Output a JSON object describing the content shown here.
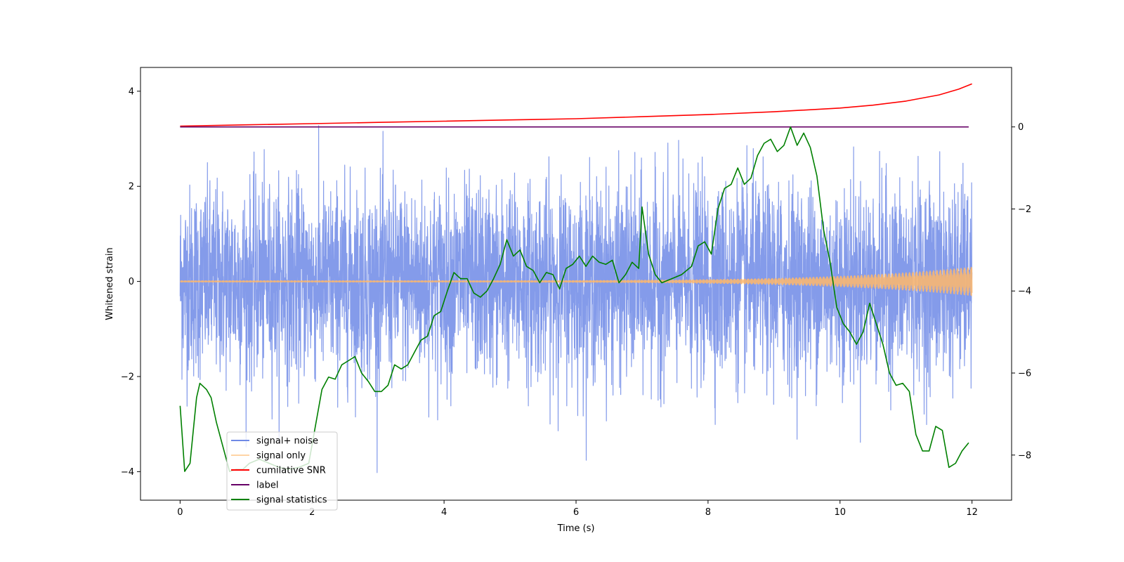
{
  "chart_data": {
    "type": "line",
    "xlabel": "Time (s)",
    "ylabel": "Whitened strain",
    "xlim": [
      -0.6,
      12.6
    ],
    "ylim": [
      -4.6,
      4.5
    ],
    "y2lim": [
      -9.1,
      1.45
    ],
    "x_ticks": [
      0,
      2,
      4,
      6,
      8,
      10,
      12
    ],
    "y_ticks": [
      -4,
      -2,
      0,
      2,
      4
    ],
    "y2_ticks": [
      -8,
      -6,
      -4,
      -2,
      0
    ],
    "legend_placement": "lower-left",
    "series": [
      {
        "name": "signal+ noise",
        "axis": "left",
        "color": "#6f8ae6",
        "style": "noise, approx. std 1, extremes about ±4, x from 0 to 12",
        "x_range": [
          0,
          12
        ],
        "approx_std": 1.0,
        "approx_max_abs": 4.1
      },
      {
        "name": "signal only",
        "axis": "left",
        "color": "#ffb96b",
        "style": "chirp oscillation, amplitude grows from ~0 to ~0.3 at x=12",
        "x_range": [
          0,
          12
        ],
        "amplitude_start": 0.01,
        "amplitude_end": 0.3
      },
      {
        "name": "cumilative SNR",
        "axis": "right",
        "color": "#ff0000",
        "points": [
          [
            0,
            0.02
          ],
          [
            1,
            0.05
          ],
          [
            2,
            0.08
          ],
          [
            3,
            0.11
          ],
          [
            4,
            0.14
          ],
          [
            5,
            0.17
          ],
          [
            6,
            0.2
          ],
          [
            7,
            0.25
          ],
          [
            8,
            0.3
          ],
          [
            9,
            0.37
          ],
          [
            10,
            0.46
          ],
          [
            10.5,
            0.53
          ],
          [
            11,
            0.63
          ],
          [
            11.5,
            0.78
          ],
          [
            11.8,
            0.92
          ],
          [
            12,
            1.05
          ]
        ]
      },
      {
        "name": "label",
        "axis": "right",
        "color": "#660066",
        "points": [
          [
            0,
            0
          ],
          [
            11.95,
            0
          ]
        ]
      },
      {
        "name": "signal statistics",
        "axis": "right",
        "color": "#008000",
        "points": [
          [
            0,
            -6.8
          ],
          [
            0.07,
            -8.4
          ],
          [
            0.15,
            -8.2
          ],
          [
            0.25,
            -6.6
          ],
          [
            0.3,
            -6.25
          ],
          [
            0.4,
            -6.4
          ],
          [
            0.47,
            -6.6
          ],
          [
            0.55,
            -7.2
          ],
          [
            0.65,
            -7.8
          ],
          [
            0.75,
            -8.4
          ],
          [
            0.85,
            -8.35
          ],
          [
            0.95,
            -8.35
          ],
          [
            1.05,
            -8.2
          ],
          [
            1.2,
            -8.1
          ],
          [
            1.35,
            -8.2
          ],
          [
            1.5,
            -8.3
          ],
          [
            1.65,
            -8.35
          ],
          [
            1.8,
            -8.3
          ],
          [
            1.95,
            -8.2
          ],
          [
            2.05,
            -7.3
          ],
          [
            2.15,
            -6.4
          ],
          [
            2.25,
            -6.1
          ],
          [
            2.35,
            -6.15
          ],
          [
            2.45,
            -5.8
          ],
          [
            2.55,
            -5.7
          ],
          [
            2.65,
            -5.6
          ],
          [
            2.75,
            -6.0
          ],
          [
            2.85,
            -6.2
          ],
          [
            2.95,
            -6.45
          ],
          [
            3.05,
            -6.45
          ],
          [
            3.15,
            -6.3
          ],
          [
            3.25,
            -5.8
          ],
          [
            3.35,
            -5.9
          ],
          [
            3.45,
            -5.8
          ],
          [
            3.55,
            -5.5
          ],
          [
            3.65,
            -5.2
          ],
          [
            3.75,
            -5.1
          ],
          [
            3.85,
            -4.6
          ],
          [
            3.95,
            -4.5
          ],
          [
            4.05,
            -4.0
          ],
          [
            4.15,
            -3.55
          ],
          [
            4.25,
            -3.7
          ],
          [
            4.35,
            -3.7
          ],
          [
            4.45,
            -4.05
          ],
          [
            4.55,
            -4.15
          ],
          [
            4.65,
            -4.0
          ],
          [
            4.75,
            -3.7
          ],
          [
            4.85,
            -3.35
          ],
          [
            4.95,
            -2.75
          ],
          [
            5.05,
            -3.15
          ],
          [
            5.15,
            -3.0
          ],
          [
            5.25,
            -3.4
          ],
          [
            5.35,
            -3.5
          ],
          [
            5.45,
            -3.8
          ],
          [
            5.55,
            -3.55
          ],
          [
            5.65,
            -3.6
          ],
          [
            5.75,
            -3.95
          ],
          [
            5.85,
            -3.45
          ],
          [
            5.95,
            -3.35
          ],
          [
            6.05,
            -3.15
          ],
          [
            6.15,
            -3.4
          ],
          [
            6.25,
            -3.15
          ],
          [
            6.35,
            -3.3
          ],
          [
            6.45,
            -3.35
          ],
          [
            6.55,
            -3.25
          ],
          [
            6.65,
            -3.8
          ],
          [
            6.75,
            -3.6
          ],
          [
            6.85,
            -3.3
          ],
          [
            6.95,
            -3.45
          ],
          [
            7.0,
            -1.95
          ],
          [
            7.1,
            -3.1
          ],
          [
            7.2,
            -3.6
          ],
          [
            7.3,
            -3.8
          ],
          [
            7.45,
            -3.7
          ],
          [
            7.6,
            -3.6
          ],
          [
            7.75,
            -3.4
          ],
          [
            7.85,
            -2.9
          ],
          [
            7.95,
            -2.8
          ],
          [
            8.05,
            -3.1
          ],
          [
            8.15,
            -2.0
          ],
          [
            8.25,
            -1.5
          ],
          [
            8.35,
            -1.4
          ],
          [
            8.45,
            -1.0
          ],
          [
            8.55,
            -1.4
          ],
          [
            8.65,
            -1.25
          ],
          [
            8.75,
            -0.7
          ],
          [
            8.85,
            -0.4
          ],
          [
            8.95,
            -0.3
          ],
          [
            9.05,
            -0.6
          ],
          [
            9.15,
            -0.45
          ],
          [
            9.25,
            0.0
          ],
          [
            9.35,
            -0.45
          ],
          [
            9.45,
            -0.15
          ],
          [
            9.55,
            -0.5
          ],
          [
            9.65,
            -1.2
          ],
          [
            9.75,
            -2.5
          ],
          [
            9.85,
            -3.3
          ],
          [
            9.95,
            -4.4
          ],
          [
            10.05,
            -4.8
          ],
          [
            10.15,
            -5.0
          ],
          [
            10.25,
            -5.3
          ],
          [
            10.35,
            -5.0
          ],
          [
            10.45,
            -4.3
          ],
          [
            10.55,
            -4.8
          ],
          [
            10.65,
            -5.3
          ],
          [
            10.75,
            -6.0
          ],
          [
            10.85,
            -6.3
          ],
          [
            10.95,
            -6.25
          ],
          [
            11.05,
            -6.45
          ],
          [
            11.15,
            -7.5
          ],
          [
            11.25,
            -7.9
          ],
          [
            11.35,
            -7.9
          ],
          [
            11.45,
            -7.3
          ],
          [
            11.55,
            -7.4
          ],
          [
            11.65,
            -8.3
          ],
          [
            11.75,
            -8.2
          ],
          [
            11.85,
            -7.9
          ],
          [
            11.95,
            -7.7
          ]
        ]
      }
    ]
  }
}
